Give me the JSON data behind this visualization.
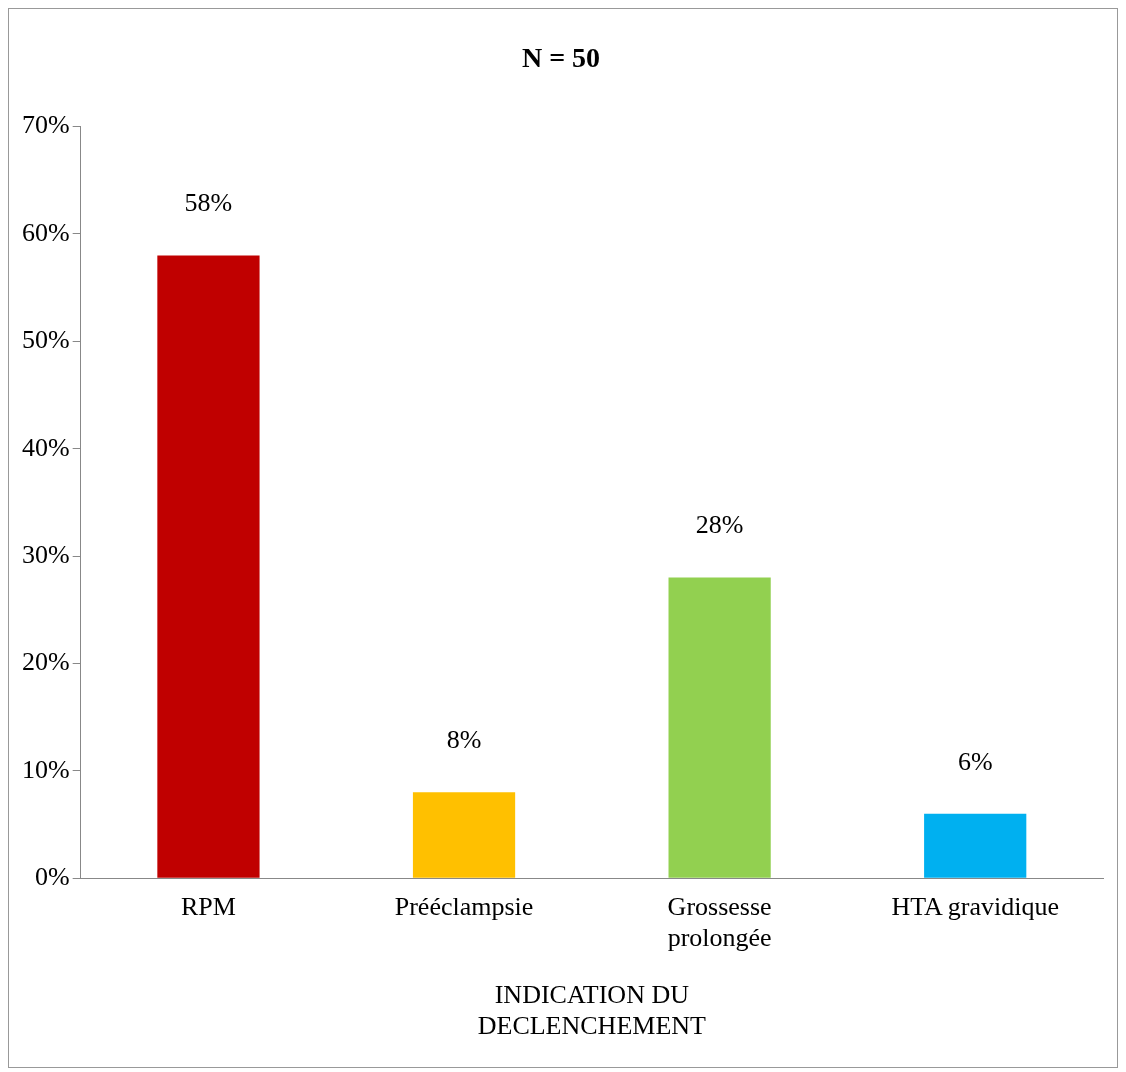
{
  "chart_data": {
    "type": "bar",
    "title": "N = 50",
    "xlabel": "INDICATION DU DECLENCHEMENT",
    "categories": [
      "RPM",
      "Prééclampsie",
      "Grossesse prolongée",
      "HTA gravidique"
    ],
    "values": [
      58,
      8,
      28,
      6
    ],
    "colors": [
      "#c00000",
      "#ffc000",
      "#92d050",
      "#00b0f0"
    ],
    "value_labels": [
      "58%",
      "8%",
      "28%",
      "6%"
    ],
    "ylim": [
      0,
      70
    ],
    "yticks": [
      {
        "value": 0,
        "label": "0%"
      },
      {
        "value": 10,
        "label": "10%"
      },
      {
        "value": 20,
        "label": "20%"
      },
      {
        "value": 30,
        "label": "30%"
      },
      {
        "value": 40,
        "label": "40%"
      },
      {
        "value": 50,
        "label": "50%"
      },
      {
        "value": 60,
        "label": "60%"
      },
      {
        "value": 70,
        "label": "70%"
      }
    ],
    "grid": false,
    "legend": false
  }
}
